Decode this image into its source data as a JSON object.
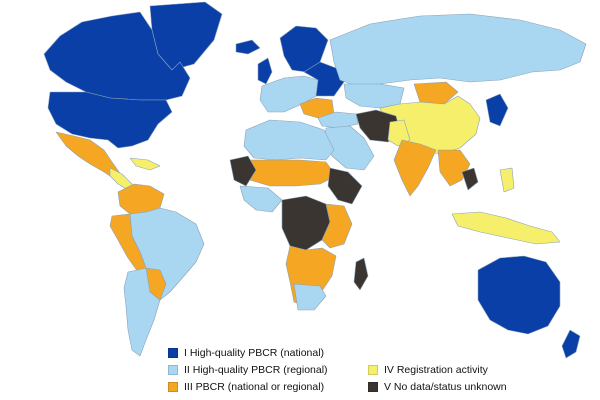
{
  "colors": {
    "ocean": "#ffffff",
    "border": "#8aa2b6",
    "i_national": "#0a3fa8",
    "ii_regional": "#a9d7f2",
    "iii_pbcr": "#f5a623",
    "iv_registration": "#f6ef6c",
    "v_nodata": "#3b3532"
  },
  "legend": [
    {
      "key": "i_national",
      "label": "I High-quality PBCR (national)"
    },
    {
      "key": "ii_regional",
      "label": "II High-quality PBCR (regional)"
    },
    {
      "key": "iii_pbcr",
      "label": "III PBCR (national or regional)"
    },
    {
      "key": "iv_registration",
      "label": "IV Registration activity"
    },
    {
      "key": "v_nodata",
      "label": "V No data/status unknown"
    }
  ]
}
